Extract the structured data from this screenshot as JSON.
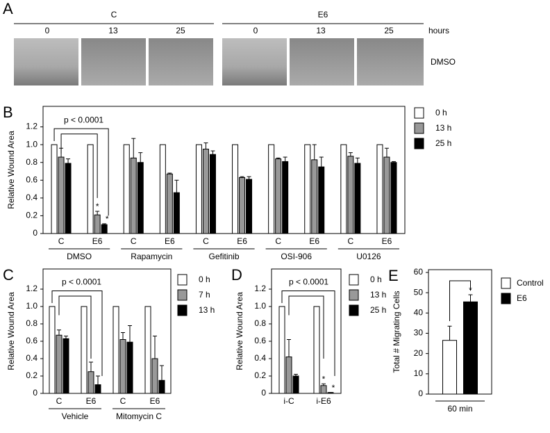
{
  "panel_a": {
    "letter": "A",
    "groups": [
      {
        "name": "C",
        "times": [
          "0",
          "13",
          "25"
        ]
      },
      {
        "name": "E6",
        "times": [
          "0",
          "13",
          "25"
        ]
      }
    ],
    "time_unit": "hours",
    "condition": "DMSO"
  },
  "chart_data": [
    {
      "type": "bar",
      "panel": "B",
      "ylabel": "Relative Wound Area",
      "annotation": "p < 0.0001",
      "categories": [
        "C",
        "E6",
        "C",
        "E6",
        "C",
        "E6",
        "C",
        "E6",
        "C",
        "E6"
      ],
      "category_groups": [
        "DMSO",
        "Rapamycin",
        "Gefitinib",
        "OSI-906",
        "U0126"
      ],
      "series": [
        {
          "name": "0 h",
          "color": "#ffffff",
          "values": [
            1,
            1,
            1,
            1,
            1,
            1,
            1,
            1,
            1,
            1
          ]
        },
        {
          "name": "13 h",
          "color": "#999999",
          "values": [
            0.86,
            0.21,
            0.85,
            0.67,
            0.95,
            0.63,
            0.84,
            0.83,
            0.87,
            0.86
          ],
          "errors": [
            0.1,
            0.04,
            0.22,
            0.01,
            0.07,
            0.01,
            0.01,
            0.17,
            0.04,
            0.1
          ],
          "stars": [
            null,
            "*",
            null,
            null,
            null,
            null,
            null,
            null,
            null,
            null
          ]
        },
        {
          "name": "25 h",
          "color": "#000000",
          "values": [
            0.79,
            0.1,
            0.8,
            0.46,
            0.89,
            0.61,
            0.81,
            0.75,
            0.79,
            0.8
          ],
          "errors": [
            0.05,
            0.01,
            0.11,
            0.14,
            0.04,
            0.03,
            0.05,
            0.11,
            0.06,
            0.01
          ],
          "stars": [
            null,
            "*",
            null,
            null,
            null,
            null,
            null,
            null,
            null,
            null
          ]
        }
      ],
      "ylim": [
        0,
        1.4
      ],
      "yticks": [
        0,
        0.2,
        0.4,
        0.6,
        0.8,
        {
          "value": 1,
          "label": "1.0"
        },
        1.2
      ],
      "legend": "right"
    },
    {
      "type": "bar",
      "panel": "C",
      "ylabel": "Relative Wound Area",
      "annotation": "p < 0.0001",
      "categories": [
        "C",
        "E6",
        "C",
        "E6"
      ],
      "category_groups": [
        "Vehicle",
        "Mitomycin C"
      ],
      "series": [
        {
          "name": "0 h",
          "color": "#ffffff",
          "values": [
            1,
            1,
            1,
            1
          ]
        },
        {
          "name": "7 h",
          "color": "#999999",
          "values": [
            0.67,
            0.25,
            0.62,
            0.4
          ],
          "errors": [
            0.06,
            0.11,
            0.08,
            0.26
          ]
        },
        {
          "name": "13 h",
          "color": "#000000",
          "values": [
            0.63,
            0.1,
            0.59,
            0.15
          ],
          "errors": [
            0.03,
            0.1,
            0.19,
            0.17
          ]
        }
      ],
      "ylim": [
        0,
        1.4
      ],
      "yticks": [
        0,
        0.2,
        0.4,
        0.6,
        0.8,
        {
          "value": 1,
          "label": "1.0"
        },
        1.2
      ],
      "legend": "right"
    },
    {
      "type": "bar",
      "panel": "D",
      "ylabel": "Relative Wound Area",
      "annotation": "p < 0.0001",
      "categories": [
        "i-C",
        "i-E6"
      ],
      "series": [
        {
          "name": "0 h",
          "color": "#ffffff",
          "values": [
            1,
            1
          ]
        },
        {
          "name": "13 h",
          "color": "#999999",
          "values": [
            0.42,
            0.09
          ],
          "errors": [
            0.2,
            0.02
          ],
          "stars": [
            null,
            "*"
          ]
        },
        {
          "name": "25 h",
          "color": "#000000",
          "values": [
            0.2,
            0.01
          ],
          "errors": [
            0.02,
            0
          ],
          "stars": [
            null,
            "*"
          ]
        }
      ],
      "ylim": [
        0,
        1.4
      ],
      "yticks": [
        0,
        0.2,
        0.4,
        0.6,
        0.8,
        {
          "value": 1,
          "label": "1.0"
        },
        1.2
      ],
      "legend": "right"
    },
    {
      "type": "bar",
      "panel": "E",
      "ylabel": "Total # Migrating Cells",
      "categories": [
        "60 min"
      ],
      "series": [
        {
          "name": "Control",
          "color": "#ffffff",
          "values": [
            26.5
          ],
          "errors": [
            7
          ]
        },
        {
          "name": "E6",
          "color": "#000000",
          "values": [
            45.5
          ],
          "errors": [
            3.5
          ],
          "stars": [
            "*"
          ]
        }
      ],
      "ylim": [
        0,
        60
      ],
      "yticks": [
        0,
        10,
        20,
        30,
        40,
        50,
        60
      ],
      "legend": "right"
    }
  ]
}
